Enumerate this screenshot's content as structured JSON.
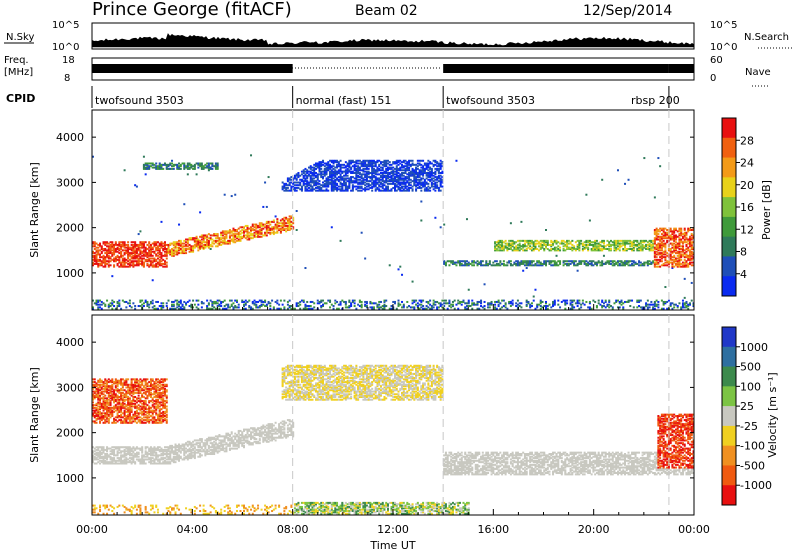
{
  "header": {
    "station": "Prince George (fitACF)",
    "beam": "Beam 02",
    "date": "12/Sep/2014"
  },
  "panels": {
    "nsky_label": "N.Sky",
    "nsearch_label": "N.Search",
    "freq_label_1": "Freq.",
    "freq_label_2": "[MHz]",
    "nave_label": "Nave",
    "cpid_label": "CPID",
    "nsky_ticks": [
      "10^5",
      "10^0"
    ],
    "nsearch_ticks": [
      "10^5",
      "10^0"
    ],
    "freq_ticks": [
      "18",
      "8"
    ],
    "nave_ticks": [
      "60",
      "0"
    ]
  },
  "cpid_segments": [
    {
      "label": "twofsound 3503",
      "start": 0,
      "end": 8
    },
    {
      "label": "normal (fast) 151",
      "start": 8,
      "end": 14
    },
    {
      "label": "twofsound 3503",
      "start": 14,
      "end": 23
    },
    {
      "label": "rbsp 200",
      "start": 23,
      "end": 24
    }
  ],
  "colors": {
    "power": [
      "#0a2bf0",
      "#1f4fb8",
      "#2f7a5a",
      "#3f9a3a",
      "#7fc23a",
      "#e8d21a",
      "#f39a18",
      "#f06010",
      "#e81010"
    ],
    "velocity": [
      "#2038c8",
      "#2e6fa0",
      "#3c8a4c",
      "#7cc444",
      "#c8c8c0",
      "#f0d020",
      "#f09020",
      "#f05a10",
      "#e81010"
    ]
  },
  "chart_data": [
    {
      "type": "heatmap",
      "title": "Power",
      "xlabel": "Time UT",
      "ylabel": "Slant Range [km]",
      "x_ticks": [
        "00:00",
        "04:00",
        "08:00",
        "12:00",
        "16:00",
        "20:00",
        "00:00"
      ],
      "y_ticks": [
        1000,
        2000,
        3000,
        4000
      ],
      "xlim": [
        0,
        24
      ],
      "ylim": [
        180,
        4600
      ],
      "colorbar_label": "Power [dB]",
      "colorbar_ticks": [
        4,
        8,
        12,
        16,
        20,
        24,
        28
      ]
    },
    {
      "type": "heatmap",
      "title": "Velocity",
      "xlabel": "Time UT",
      "ylabel": "Slant Range [km]",
      "x_ticks": [
        "00:00",
        "04:00",
        "08:00",
        "12:00",
        "16:00",
        "20:00",
        "00:00"
      ],
      "y_ticks": [
        1000,
        2000,
        3000,
        4000
      ],
      "xlim": [
        0,
        24
      ],
      "ylim": [
        180,
        4600
      ],
      "colorbar_label": "Velocity [m s⁻¹]",
      "colorbar_ticks": [
        "1000",
        "500",
        "100",
        "25",
        "-25",
        "-100",
        "-500",
        "-1000"
      ]
    }
  ]
}
